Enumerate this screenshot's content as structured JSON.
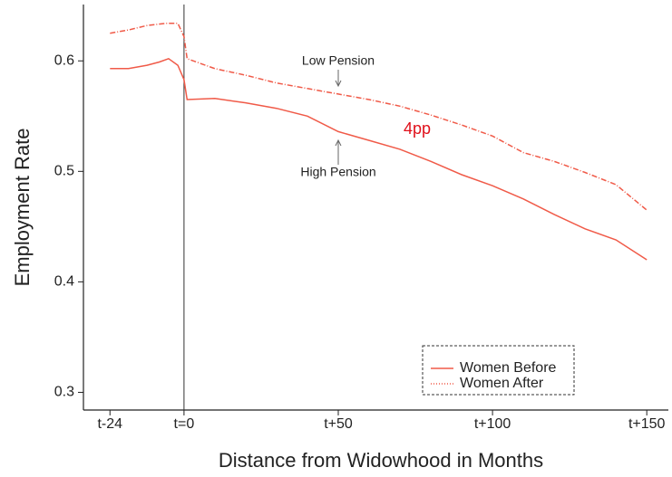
{
  "chart_data": {
    "type": "line",
    "x_label": "Distance from Widowhood in Months",
    "y_label": "Employment Rate",
    "series": [
      {
        "name": "Women Before",
        "color": "#f05a48",
        "style": "solid",
        "x": [
          -24,
          -18,
          -12,
          -8,
          -5,
          -2,
          0,
          1,
          10,
          20,
          30,
          40,
          50,
          60,
          70,
          80,
          90,
          100,
          110,
          120,
          130,
          140,
          150
        ],
        "values": [
          0.593,
          0.593,
          0.596,
          0.599,
          0.602,
          0.596,
          0.583,
          0.565,
          0.566,
          0.562,
          0.557,
          0.55,
          0.536,
          0.528,
          0.52,
          0.509,
          0.497,
          0.487,
          0.475,
          0.461,
          0.448,
          0.438,
          0.42
        ]
      },
      {
        "name": "Women After",
        "color": "#f05a48",
        "style": "dashdot",
        "x": [
          -24,
          -18,
          -12,
          -6,
          -2,
          0,
          1,
          5,
          10,
          20,
          30,
          40,
          50,
          60,
          70,
          80,
          90,
          100,
          110,
          120,
          130,
          140,
          150
        ],
        "values": [
          0.625,
          0.628,
          0.632,
          0.634,
          0.634,
          0.622,
          0.602,
          0.598,
          0.593,
          0.587,
          0.58,
          0.575,
          0.57,
          0.565,
          0.559,
          0.551,
          0.542,
          0.532,
          0.517,
          0.509,
          0.499,
          0.488,
          0.465
        ]
      }
    ],
    "annotations": [
      {
        "text": "Low Pension",
        "color": "#222222"
      },
      {
        "text": "High Pension",
        "color": "#222222"
      },
      {
        "text": "4pp",
        "color": "#e0101a"
      }
    ],
    "vline_x": 0,
    "xlim": [
      -32.6,
      157
    ],
    "ylim": [
      0.284,
      0.651
    ],
    "xticks": [
      {
        "value": -24,
        "label": "t-24"
      },
      {
        "value": 0,
        "label": "t=0"
      },
      {
        "value": 50,
        "label": "t+50"
      },
      {
        "value": 100,
        "label": "t+100"
      },
      {
        "value": 150,
        "label": "t+150"
      }
    ],
    "yticks": [
      0.3,
      0.4,
      0.5,
      0.6
    ],
    "legend": "bottom-right"
  }
}
